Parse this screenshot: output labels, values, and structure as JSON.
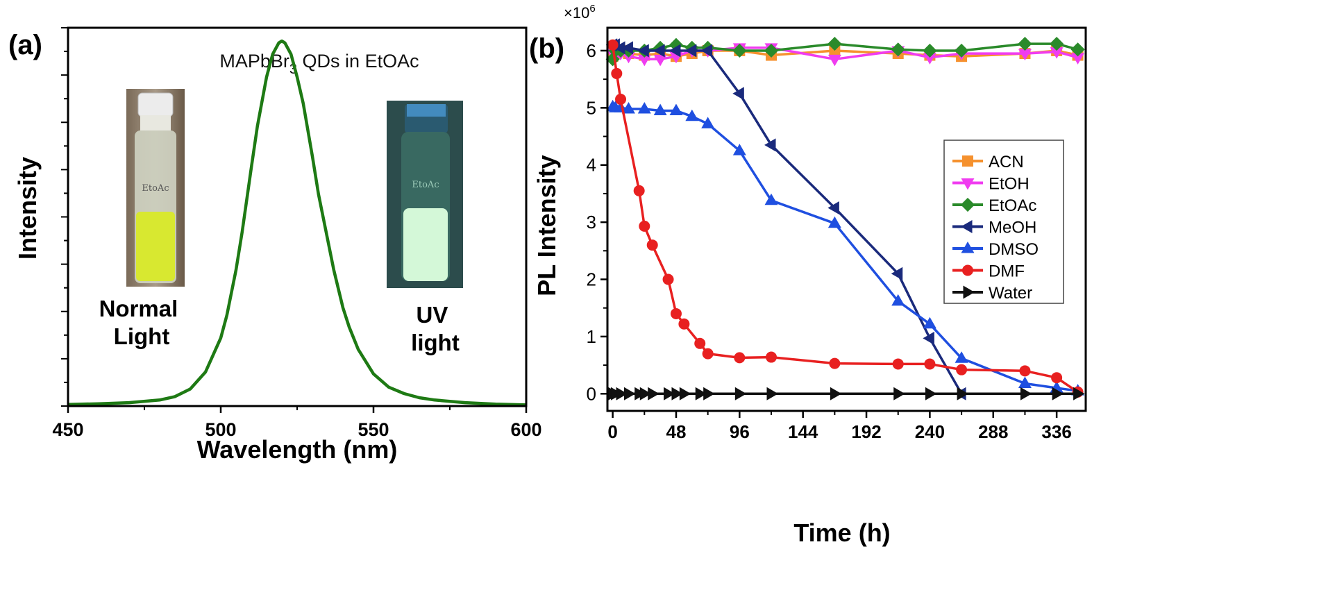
{
  "chart_data": [
    {
      "type": "line",
      "panel_label": "(a)",
      "title": "MAPbBr",
      "title_subscript": "3",
      "title_suffix": " QDs in EtOAc",
      "xlabel": "Wavelength (nm)",
      "ylabel": "Intensity",
      "xlim": [
        450,
        600
      ],
      "ylim": [
        0,
        1
      ],
      "x_ticks": [
        "450",
        "500",
        "550",
        "600"
      ],
      "y_tick_labels": false,
      "annotations": [
        {
          "lines": [
            "Normal",
            "Light"
          ]
        },
        {
          "lines": [
            "UV",
            "light"
          ]
        }
      ],
      "insets": [
        {
          "name": "vial under normal light",
          "liquid_color": "#d8e830",
          "vial_label": "EtoAc"
        },
        {
          "name": "vial under UV light",
          "liquid_color": "#d4f8d8",
          "vial_label": "EtoAc"
        }
      ],
      "series": [
        {
          "color": "#1e7a14",
          "x": [
            450,
            460,
            470,
            480,
            485,
            490,
            495,
            500,
            502,
            505,
            507,
            510,
            512,
            515,
            517,
            519,
            520,
            521,
            523,
            525,
            527,
            530,
            532,
            535,
            537,
            540,
            542,
            545,
            550,
            555,
            560,
            565,
            570,
            580,
            590,
            600
          ],
          "y": [
            0.004,
            0.006,
            0.009,
            0.016,
            0.025,
            0.045,
            0.09,
            0.18,
            0.24,
            0.36,
            0.46,
            0.63,
            0.74,
            0.87,
            0.93,
            0.96,
            0.965,
            0.96,
            0.93,
            0.87,
            0.8,
            0.66,
            0.56,
            0.44,
            0.36,
            0.26,
            0.21,
            0.15,
            0.085,
            0.05,
            0.033,
            0.022,
            0.016,
            0.009,
            0.005,
            0.003
          ]
        }
      ]
    },
    {
      "type": "line",
      "panel_label": "(b)",
      "xlabel": "Time (h)",
      "ylabel": "PL Intensity",
      "y_multiplier": "×10",
      "y_multiplier_exp": "6",
      "xlim": [
        -4,
        358
      ],
      "ylim": [
        -0.3,
        6.4
      ],
      "x_ticks": [
        0,
        48,
        96,
        144,
        192,
        240,
        288,
        336
      ],
      "y_ticks": [
        0,
        1,
        2,
        3,
        4,
        5,
        6
      ],
      "legend_position": "right",
      "grid": false,
      "series": [
        {
          "name": "ACN",
          "color": "#f5912e",
          "marker": "square",
          "x": [
            0,
            2,
            6,
            12,
            24,
            36,
            48,
            60,
            72,
            96,
            120,
            168,
            216,
            240,
            264,
            312,
            336,
            352
          ],
          "y": [
            5.9,
            5.95,
            6.0,
            5.95,
            5.92,
            5.95,
            5.9,
            5.95,
            6.0,
            6.0,
            5.92,
            6.0,
            5.95,
            5.92,
            5.9,
            5.95,
            6.0,
            5.92
          ]
        },
        {
          "name": "EtOH",
          "color": "#f03cf0",
          "marker": "triangle-down",
          "x": [
            0,
            2,
            6,
            12,
            24,
            36,
            48,
            60,
            72,
            96,
            120,
            168,
            216,
            240,
            264,
            312,
            336,
            352
          ],
          "y": [
            5.95,
            5.9,
            5.95,
            5.9,
            5.85,
            5.85,
            5.9,
            6.0,
            6.0,
            6.05,
            6.05,
            5.85,
            6.0,
            5.88,
            5.95,
            5.95,
            5.98,
            5.88
          ]
        },
        {
          "name": "EtOAc",
          "color": "#2a8a2a",
          "marker": "diamond",
          "x": [
            0,
            2,
            6,
            12,
            24,
            36,
            48,
            60,
            72,
            96,
            120,
            168,
            216,
            240,
            264,
            312,
            336,
            352
          ],
          "y": [
            5.85,
            6.0,
            6.0,
            6.0,
            6.0,
            6.05,
            6.1,
            6.05,
            6.05,
            6.0,
            6.0,
            6.12,
            6.02,
            6.0,
            6.0,
            6.12,
            6.12,
            6.02
          ]
        },
        {
          "name": "MeOH",
          "color": "#1a2a7c",
          "marker": "triangle-left",
          "x": [
            0,
            2,
            6,
            12,
            24,
            36,
            48,
            60,
            72,
            96,
            120,
            168,
            216,
            240,
            264
          ],
          "y": [
            6.1,
            6.1,
            6.05,
            6.05,
            6.0,
            6.0,
            6.0,
            6.0,
            6.0,
            5.25,
            4.35,
            3.25,
            2.1,
            0.97,
            0.0
          ]
        },
        {
          "name": "DMSO",
          "color": "#1f4fe0",
          "marker": "triangle-up",
          "x": [
            0,
            2,
            6,
            12,
            24,
            36,
            48,
            60,
            72,
            96,
            120,
            168,
            216,
            240,
            264,
            312,
            336,
            352
          ],
          "y": [
            5.02,
            5.0,
            5.0,
            4.98,
            4.98,
            4.95,
            4.95,
            4.85,
            4.72,
            4.25,
            3.38,
            2.98,
            1.62,
            1.22,
            0.62,
            0.18,
            0.1,
            0.05
          ]
        },
        {
          "name": "DMF",
          "color": "#e82020",
          "marker": "circle",
          "x": [
            0,
            3,
            6,
            20,
            24,
            30,
            42,
            48,
            54,
            66,
            72,
            96,
            120,
            168,
            216,
            240,
            264,
            312,
            336,
            352
          ],
          "y": [
            6.1,
            5.6,
            5.15,
            3.55,
            2.93,
            2.6,
            2.0,
            1.4,
            1.22,
            0.88,
            0.7,
            0.63,
            0.64,
            0.53,
            0.52,
            0.52,
            0.42,
            0.4,
            0.28,
            0.03
          ]
        },
        {
          "name": "Water",
          "color": "#111111",
          "marker": "triangle-right",
          "x": [
            0,
            2,
            6,
            12,
            20,
            24,
            30,
            42,
            48,
            54,
            66,
            72,
            96,
            120,
            168,
            216,
            240,
            264,
            312,
            336,
            352
          ],
          "y": [
            0,
            0,
            0,
            0,
            0,
            0,
            0,
            0,
            0,
            0,
            0,
            0,
            0,
            0,
            0,
            0,
            0,
            0,
            0,
            0,
            0
          ]
        }
      ]
    }
  ]
}
